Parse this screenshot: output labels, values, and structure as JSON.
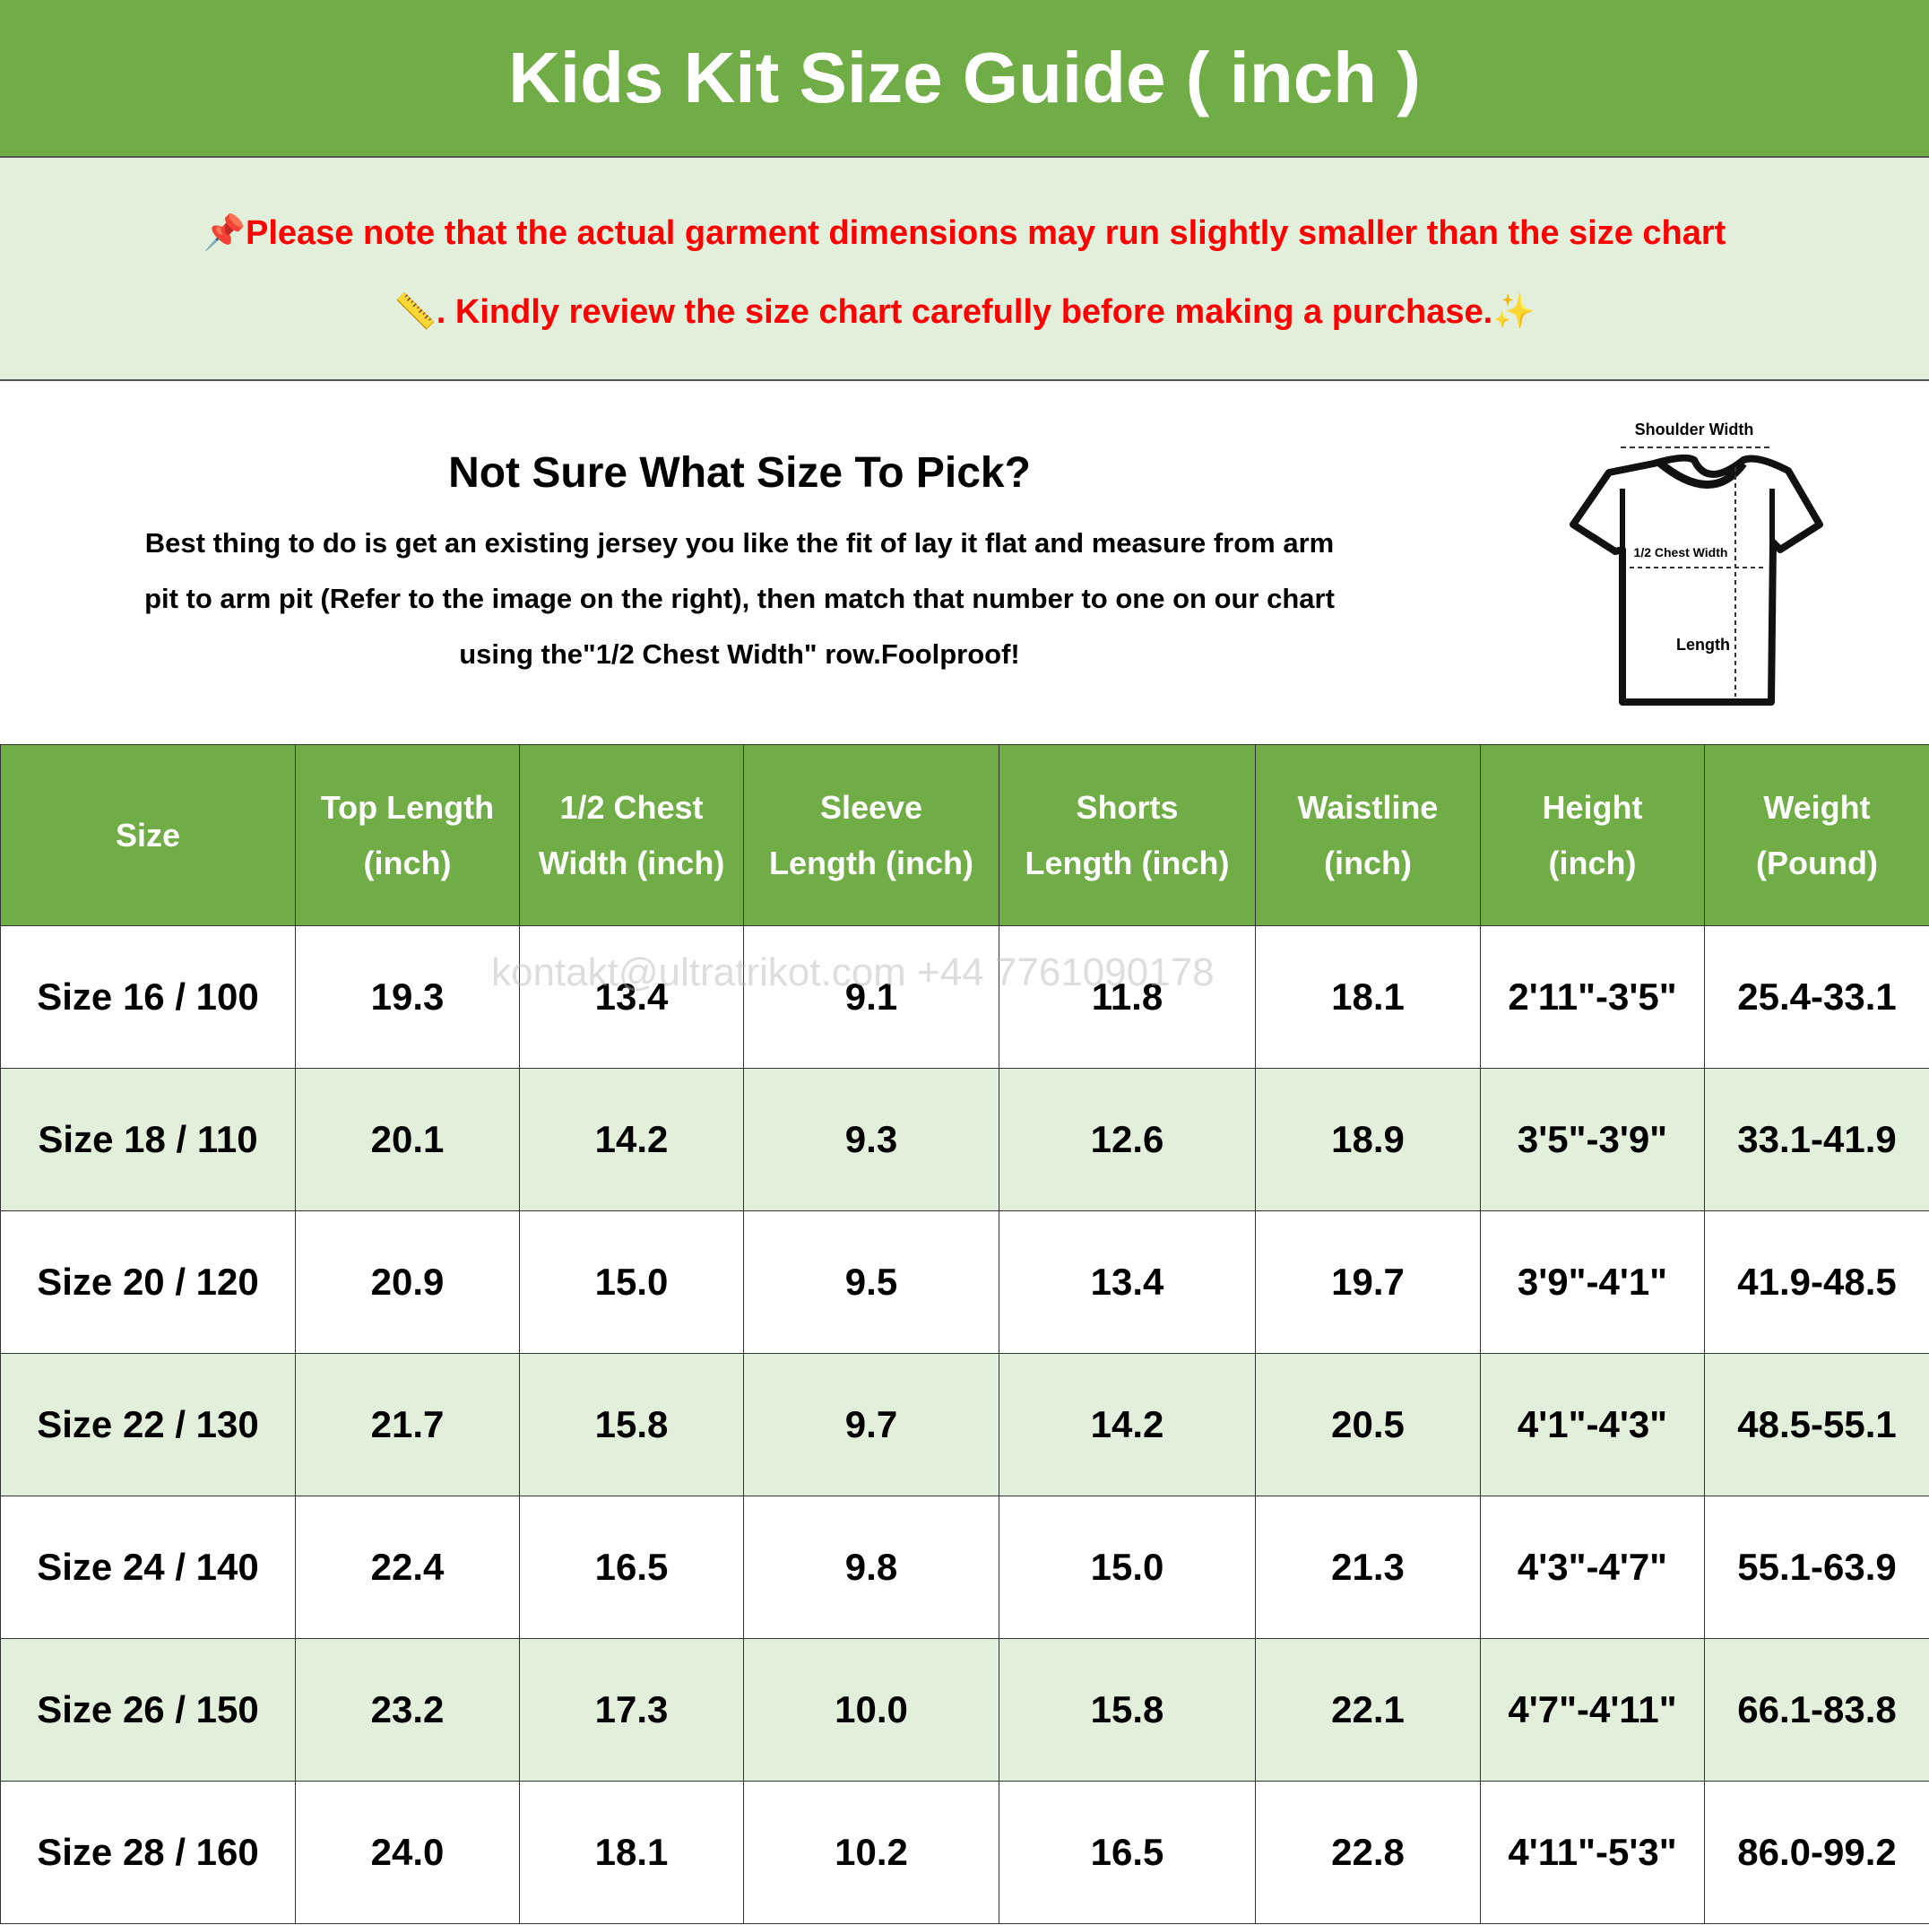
{
  "title": "Kids Kit Size Guide ( inch )",
  "note": {
    "line1": "Please note that the actual garment dimensions may run slightly smaller than the size chart",
    "line2": ". Kindly review the size chart carefully before making a purchase.",
    "icons": [
      "pushpin-icon",
      "ruler-icon",
      "sparkles-icon"
    ],
    "color": "#FF0000"
  },
  "info": {
    "heading": "Not Sure What Size To Pick?",
    "lines": [
      "Best thing to do is get an existing jersey you like the fit of lay it flat and measure from arm",
      "pit to arm pit (Refer to the image on the right), then match that number to one on our chart",
      "using the\"1/2 Chest Width\" row.Foolproof!"
    ]
  },
  "diagram": {
    "shoulder": "Shoulder Width",
    "chest": "1/2 Chest Width",
    "length": "Length"
  },
  "watermark": "kontakt@ultratrikot.com  +44 7761090178",
  "colors": {
    "header": "#70AD47",
    "alt_row": "#E2EFDA"
  },
  "table": {
    "headers": [
      [
        "Size",
        ""
      ],
      [
        "Top Length",
        "(inch)"
      ],
      [
        "1/2 Chest",
        "Width (inch)"
      ],
      [
        "Sleeve",
        "Length (inch)"
      ],
      [
        "Shorts",
        "Length (inch)"
      ],
      [
        "Waistline",
        "(inch)"
      ],
      [
        "Height",
        "(inch)"
      ],
      [
        "Weight",
        "(Pound)"
      ]
    ],
    "rows": [
      [
        "Size 16 / 100",
        "19.3",
        "13.4",
        "9.1",
        "11.8",
        "18.1",
        "2'11\"-3'5\"",
        "25.4-33.1"
      ],
      [
        "Size 18 / 110",
        "20.1",
        "14.2",
        "9.3",
        "12.6",
        "18.9",
        "3'5\"-3'9\"",
        "33.1-41.9"
      ],
      [
        "Size 20 / 120",
        "20.9",
        "15.0",
        "9.5",
        "13.4",
        "19.7",
        "3'9\"-4'1\"",
        "41.9-48.5"
      ],
      [
        "Size 22 / 130",
        "21.7",
        "15.8",
        "9.7",
        "14.2",
        "20.5",
        "4'1\"-4'3\"",
        "48.5-55.1"
      ],
      [
        "Size 24 / 140",
        "22.4",
        "16.5",
        "9.8",
        "15.0",
        "21.3",
        "4'3\"-4'7\"",
        "55.1-63.9"
      ],
      [
        "Size 26 / 150",
        "23.2",
        "17.3",
        "10.0",
        "15.8",
        "22.1",
        "4'7\"-4'11\"",
        "66.1-83.8"
      ],
      [
        "Size 28 / 160",
        "24.0",
        "18.1",
        "10.2",
        "16.5",
        "22.8",
        "4'11\"-5'3\"",
        "86.0-99.2"
      ]
    ]
  }
}
